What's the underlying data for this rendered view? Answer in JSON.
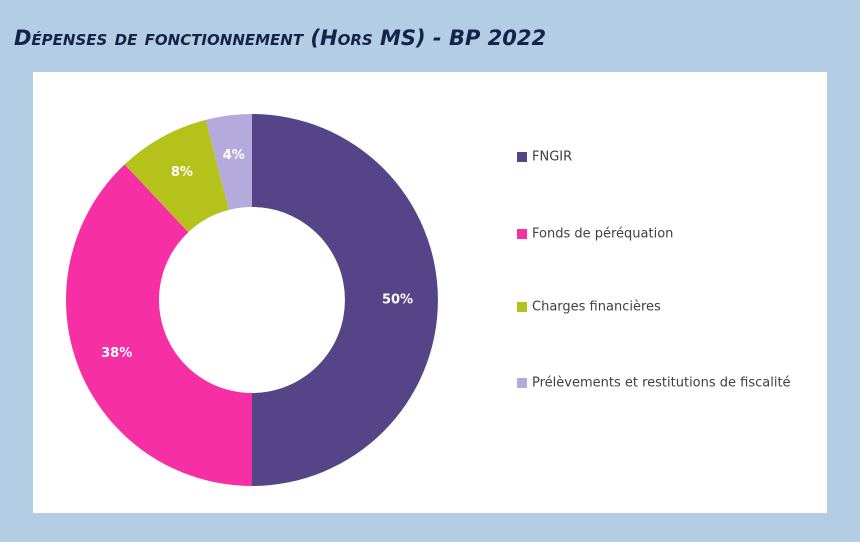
{
  "chart_data": {
    "type": "donut",
    "title": "Dépenses de fonctionnement (Hors MS) - BP 2022",
    "categories": [
      "FNGIR",
      "Fonds de péréquation",
      "Charges financières",
      "Prélèvements et restitutions de fiscalité"
    ],
    "values": [
      50,
      38,
      8,
      4
    ],
    "value_labels": [
      "50%",
      "38%",
      "8%",
      "4%"
    ],
    "colors": [
      "#554588",
      "#f72fa5",
      "#b5c21b",
      "#b4aadb"
    ],
    "legend": "right"
  }
}
